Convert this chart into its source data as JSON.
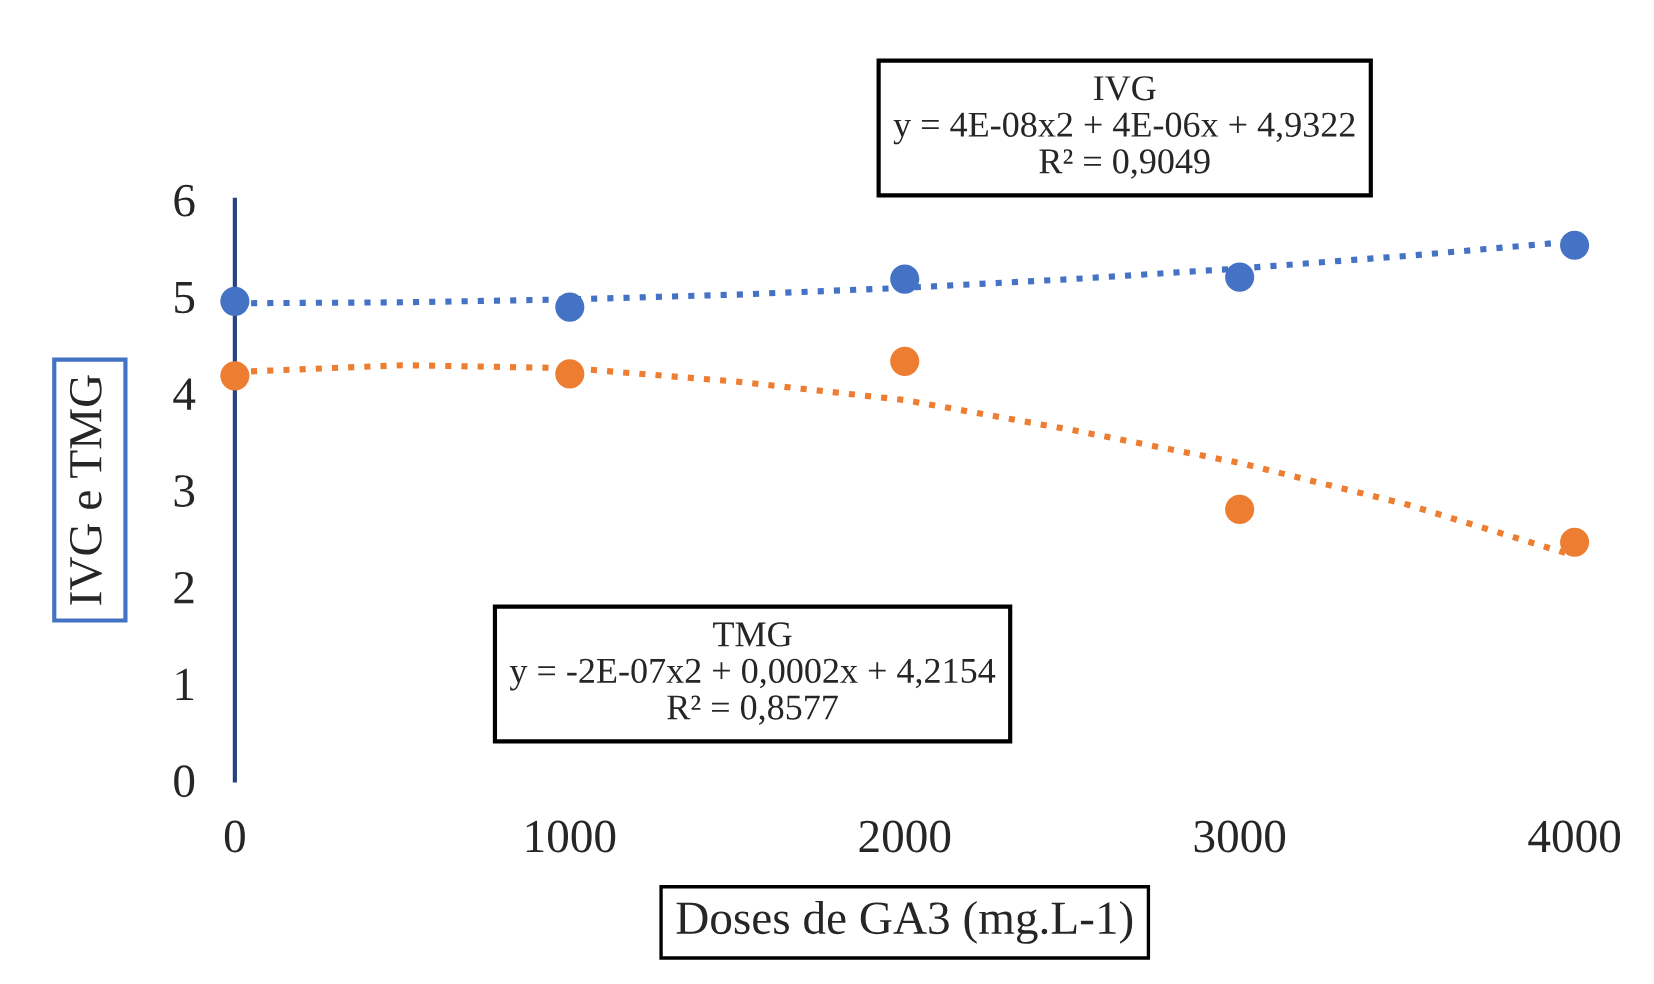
{
  "chart_data": {
    "type": "scatter",
    "xlabel": "Doses de GA3 (mg.L-1)",
    "ylabel": "IVG e TMG",
    "x": [
      0,
      1000,
      2000,
      3000,
      4000
    ],
    "xlim": [
      0,
      4000
    ],
    "xticks": [
      0,
      1000,
      2000,
      3000,
      4000
    ],
    "ylim": [
      0,
      6
    ],
    "yticks": [
      0,
      1,
      2,
      3,
      4,
      5,
      6
    ],
    "grid": false,
    "legend": false,
    "marker": "circle",
    "series": [
      {
        "color": "#4472c4",
        "values": [
          4.95,
          4.89,
          5.18,
          5.2,
          5.53
        ]
      },
      {
        "color": "#ed7d31",
        "values": [
          4.18,
          4.2,
          4.33,
          2.8,
          2.46
        ]
      },
      {
        "type": "line",
        "color": "#4472c4",
        "line_style": "dotted",
        "marker": "none",
        "x": [
          0,
          500,
          1000,
          1500,
          2000,
          2500,
          3000,
          3500,
          4000
        ],
        "values": [
          4.93,
          4.94,
          4.97,
          5.02,
          5.09,
          5.18,
          5.29,
          5.42,
          5.57
        ]
      },
      {
        "type": "line",
        "color": "#ed7d31",
        "line_style": "dotted",
        "marker": "none",
        "x": [
          0,
          500,
          1000,
          1500,
          2000,
          2500,
          3000,
          3500,
          4000
        ],
        "values": [
          4.22,
          4.29,
          4.26,
          4.12,
          3.93,
          3.62,
          3.28,
          2.85,
          2.32
        ]
      }
    ],
    "annotations": [
      "IVG\ny = 4E-08x2 + 4E-06x + 4,9322\nR² = 0,9049",
      "TMG\ny = -2E-07x2 + 0,0002x + 4,2154\nR² = 0,8577"
    ]
  }
}
